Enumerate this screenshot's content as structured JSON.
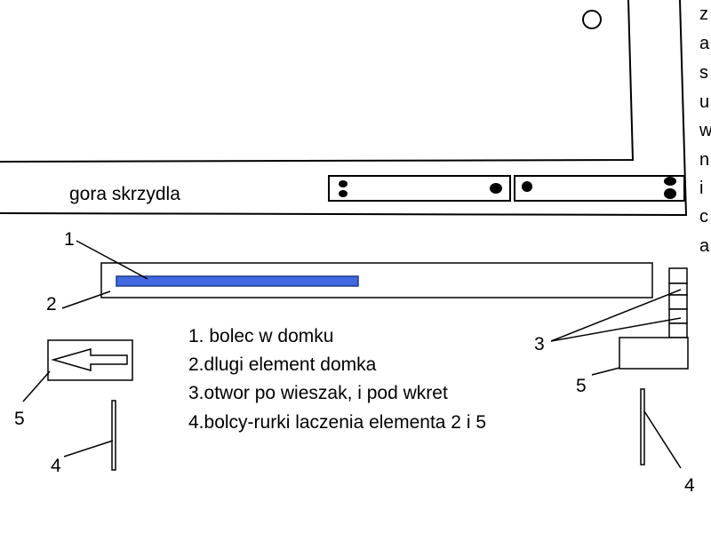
{
  "caption": "gora skrzydla",
  "side_text": [
    "z",
    "a",
    "s",
    "u",
    "w",
    "n",
    "i",
    "c",
    "a"
  ],
  "legend": [
    "1. bolec w domku",
    "2.dlugi element domka",
    "3.otwor po wieszak, i pod wkret",
    "4.bolcy-rurki laczenia elementa 2 i 5"
  ],
  "callouts": {
    "n1": "1",
    "n2": "2",
    "n3": "3",
    "n4_left": "4",
    "n4_right": "4",
    "n5_left": "5",
    "n5_right": "5"
  },
  "colors": {
    "stroke": "#000000",
    "bolt": "#4169e1"
  }
}
